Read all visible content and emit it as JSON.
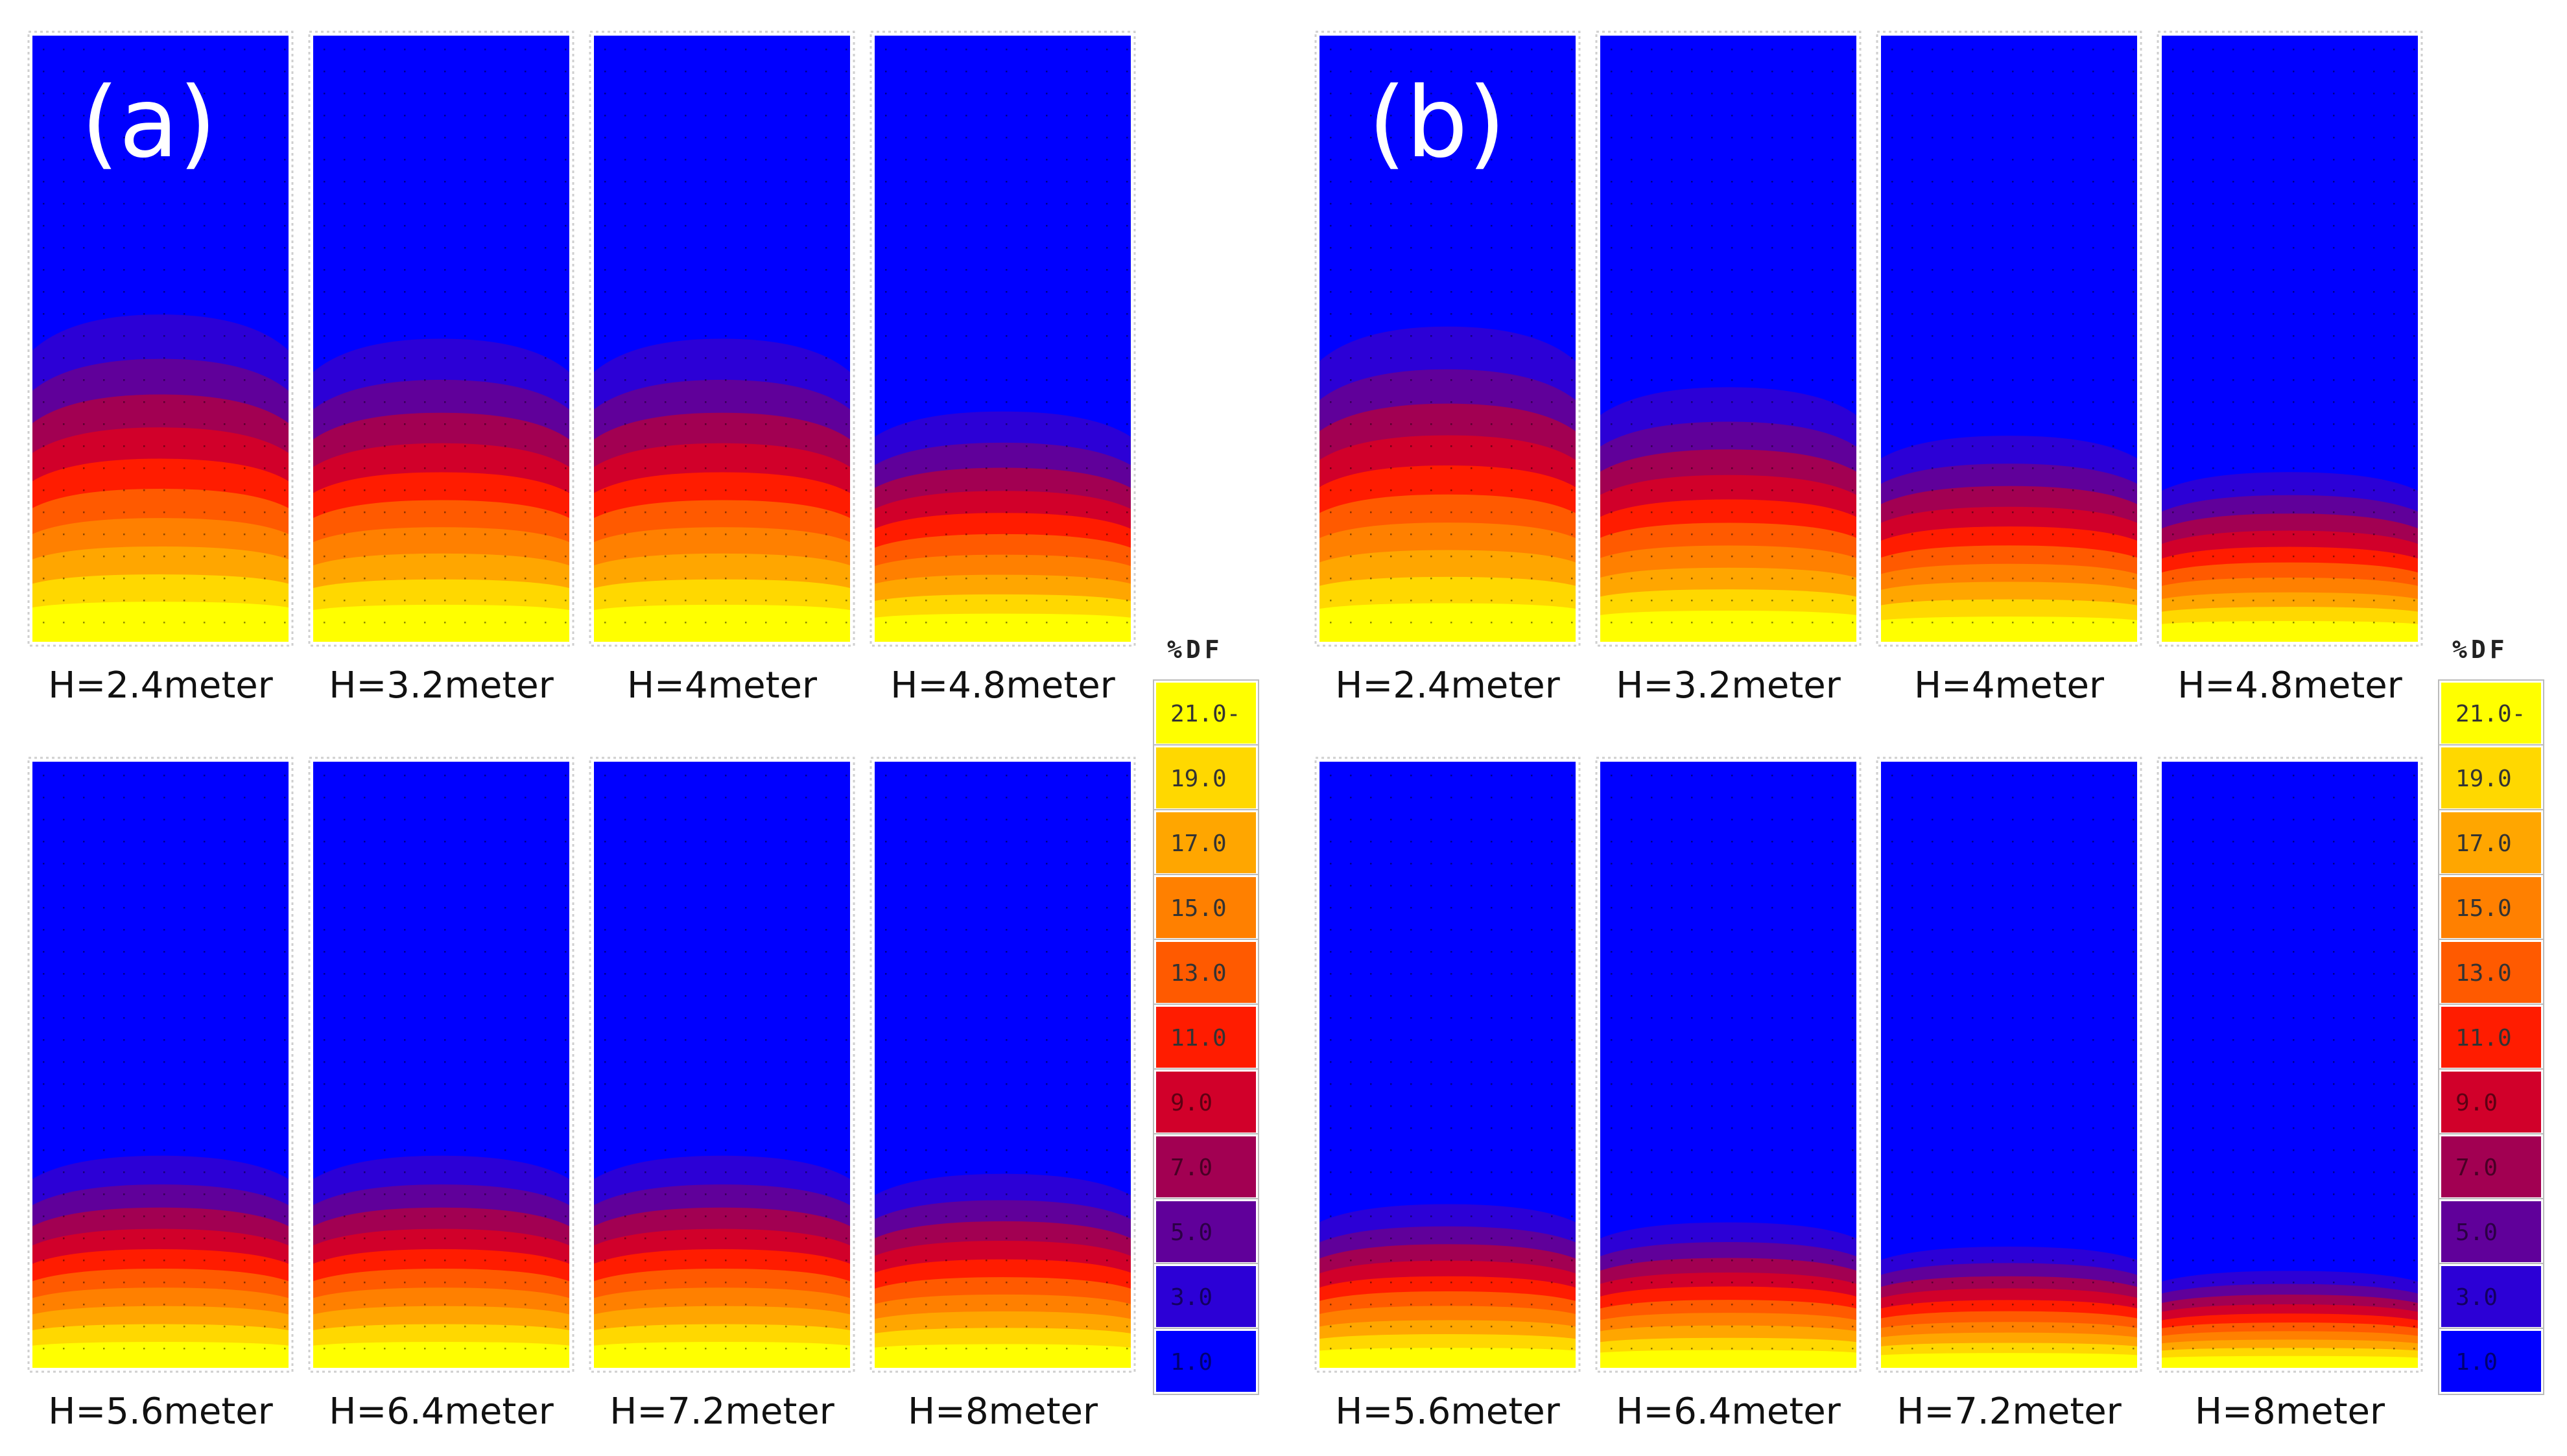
{
  "figure": {
    "panels": [
      {
        "label": "(a)",
        "rows": [
          [
            {
              "caption": "H=2.4meter",
              "band_top": 0.46
            },
            {
              "caption": "H=3.2meter",
              "band_top": 0.5
            },
            {
              "caption": "H=4meter",
              "band_top": 0.5
            },
            {
              "caption": "H=4.8meter",
              "band_top": 0.62
            }
          ],
          [
            {
              "caption": "H=5.6meter",
              "band_top": 0.65
            },
            {
              "caption": "H=6.4meter",
              "band_top": 0.65
            },
            {
              "caption": "H=7.2meter",
              "band_top": 0.65
            },
            {
              "caption": "H=8meter",
              "band_top": 0.68
            }
          ]
        ]
      },
      {
        "label": "(b)",
        "rows": [
          [
            {
              "caption": "H=2.4meter",
              "band_top": 0.48
            },
            {
              "caption": "H=3.2meter",
              "band_top": 0.58
            },
            {
              "caption": "H=4meter",
              "band_top": 0.66
            },
            {
              "caption": "H=4.8meter",
              "band_top": 0.72
            }
          ],
          [
            {
              "caption": "H=5.6meter",
              "band_top": 0.73
            },
            {
              "caption": "H=6.4meter",
              "band_top": 0.76
            },
            {
              "caption": "H=7.2meter",
              "band_top": 0.8
            },
            {
              "caption": "H=8meter",
              "band_top": 0.84
            }
          ]
        ]
      }
    ],
    "legend": {
      "title": "%DF",
      "levels": [
        {
          "label": "21.0-",
          "color": "#ffff00"
        },
        {
          "label": "19.0",
          "color": "#ffd800"
        },
        {
          "label": "17.0",
          "color": "#ffa600"
        },
        {
          "label": "15.0",
          "color": "#ff8000"
        },
        {
          "label": "13.0",
          "color": "#ff5a00"
        },
        {
          "label": "11.0",
          "color": "#ff1c00"
        },
        {
          "label": "9.0",
          "color": "#d1002a"
        },
        {
          "label": "7.0",
          "color": "#a20052"
        },
        {
          "label": "5.0",
          "color": "#60009a"
        },
        {
          "label": "3.0",
          "color": "#2c00d6"
        },
        {
          "label": "1.0",
          "color": "#0000ff"
        }
      ]
    }
  }
}
